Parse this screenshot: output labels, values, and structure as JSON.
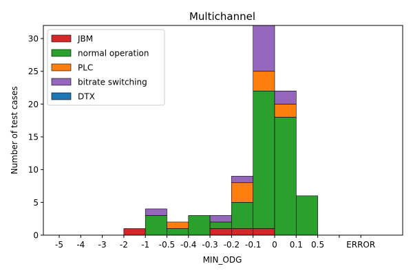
{
  "chart_data": {
    "type": "bar",
    "stacked": true,
    "title": "Multichannel",
    "xlabel": "MIN_ODG",
    "ylabel": "Number of test cases",
    "ylim": [
      0,
      32
    ],
    "yticks": [
      0,
      5,
      10,
      15,
      20,
      25,
      30
    ],
    "xticks": [
      "-5",
      "-4",
      "-3",
      "-2",
      "-1",
      "-0.5",
      "-0.4",
      "-0.3",
      "-0.2",
      "-0.1",
      "0",
      "0.1",
      "0.5",
      "",
      "ERROR"
    ],
    "bins": [
      "-5..-4",
      "-4..-3",
      "-3..-2",
      "-2..-1",
      "-1..-0.5",
      "-0.5..-0.4",
      "-0.4..-0.3",
      "-0.3..-0.2",
      "-0.2..-0.1",
      "-0.1..0",
      "0..0.1",
      "0.1..0.5",
      "0.5..",
      "..ERROR",
      "ERROR.."
    ],
    "series": [
      {
        "name": "JBM",
        "color": "#d62728",
        "values": [
          0,
          0,
          0,
          1,
          0,
          0,
          0,
          1,
          1,
          1,
          0,
          0,
          0,
          0,
          0
        ]
      },
      {
        "name": "normal operation",
        "color": "#2ca02c",
        "values": [
          0,
          0,
          0,
          0,
          3,
          1,
          3,
          1,
          4,
          21,
          18,
          6,
          0,
          0,
          0
        ]
      },
      {
        "name": "PLC",
        "color": "#ff7f0e",
        "values": [
          0,
          0,
          0,
          0,
          0,
          1,
          0,
          0,
          3,
          3,
          2,
          0,
          0,
          0,
          0
        ]
      },
      {
        "name": "bitrate switching",
        "color": "#9467bd",
        "values": [
          0,
          0,
          0,
          0,
          1,
          0,
          0,
          1,
          1,
          7,
          2,
          0,
          0,
          0,
          0
        ]
      },
      {
        "name": "DTX",
        "color": "#1f77b4",
        "values": [
          0,
          0,
          0,
          0,
          0,
          0,
          0,
          0,
          0,
          0,
          0,
          0,
          0,
          0,
          0
        ]
      }
    ],
    "legend_position": "top-left"
  }
}
